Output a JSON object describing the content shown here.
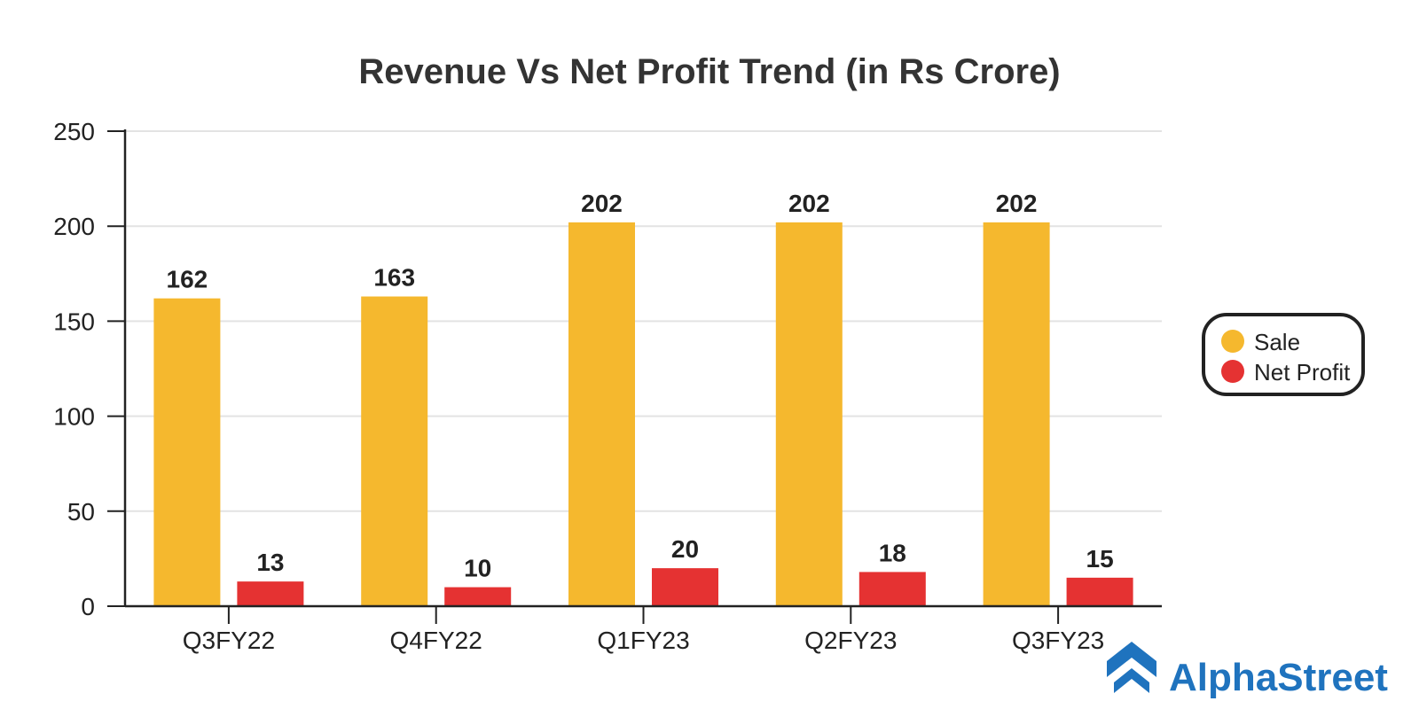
{
  "chart_data": {
    "type": "bar",
    "title": "Revenue Vs Net Profit Trend (in Rs Crore)",
    "categories": [
      "Q3FY22",
      "Q4FY22",
      "Q1FY23",
      "Q2FY23",
      "Q3FY23"
    ],
    "series": [
      {
        "name": "Sale",
        "values": [
          162,
          163,
          202,
          202,
          202
        ],
        "color": "#F5B82E"
      },
      {
        "name": "Net Profit",
        "values": [
          13,
          10,
          20,
          18,
          15
        ],
        "color": "#E53232"
      }
    ],
    "ylim": [
      0,
      250
    ],
    "yticks": [
      0,
      50,
      100,
      150,
      200,
      250
    ],
    "ytick_labels": [
      "0",
      "50",
      "100",
      "150",
      "200",
      "250"
    ],
    "grid": true,
    "legend_position": "right"
  },
  "brand": {
    "name": "AlphaStreet",
    "logo_icon": "chevron-up-logo-icon",
    "color": "#1F73BE"
  }
}
